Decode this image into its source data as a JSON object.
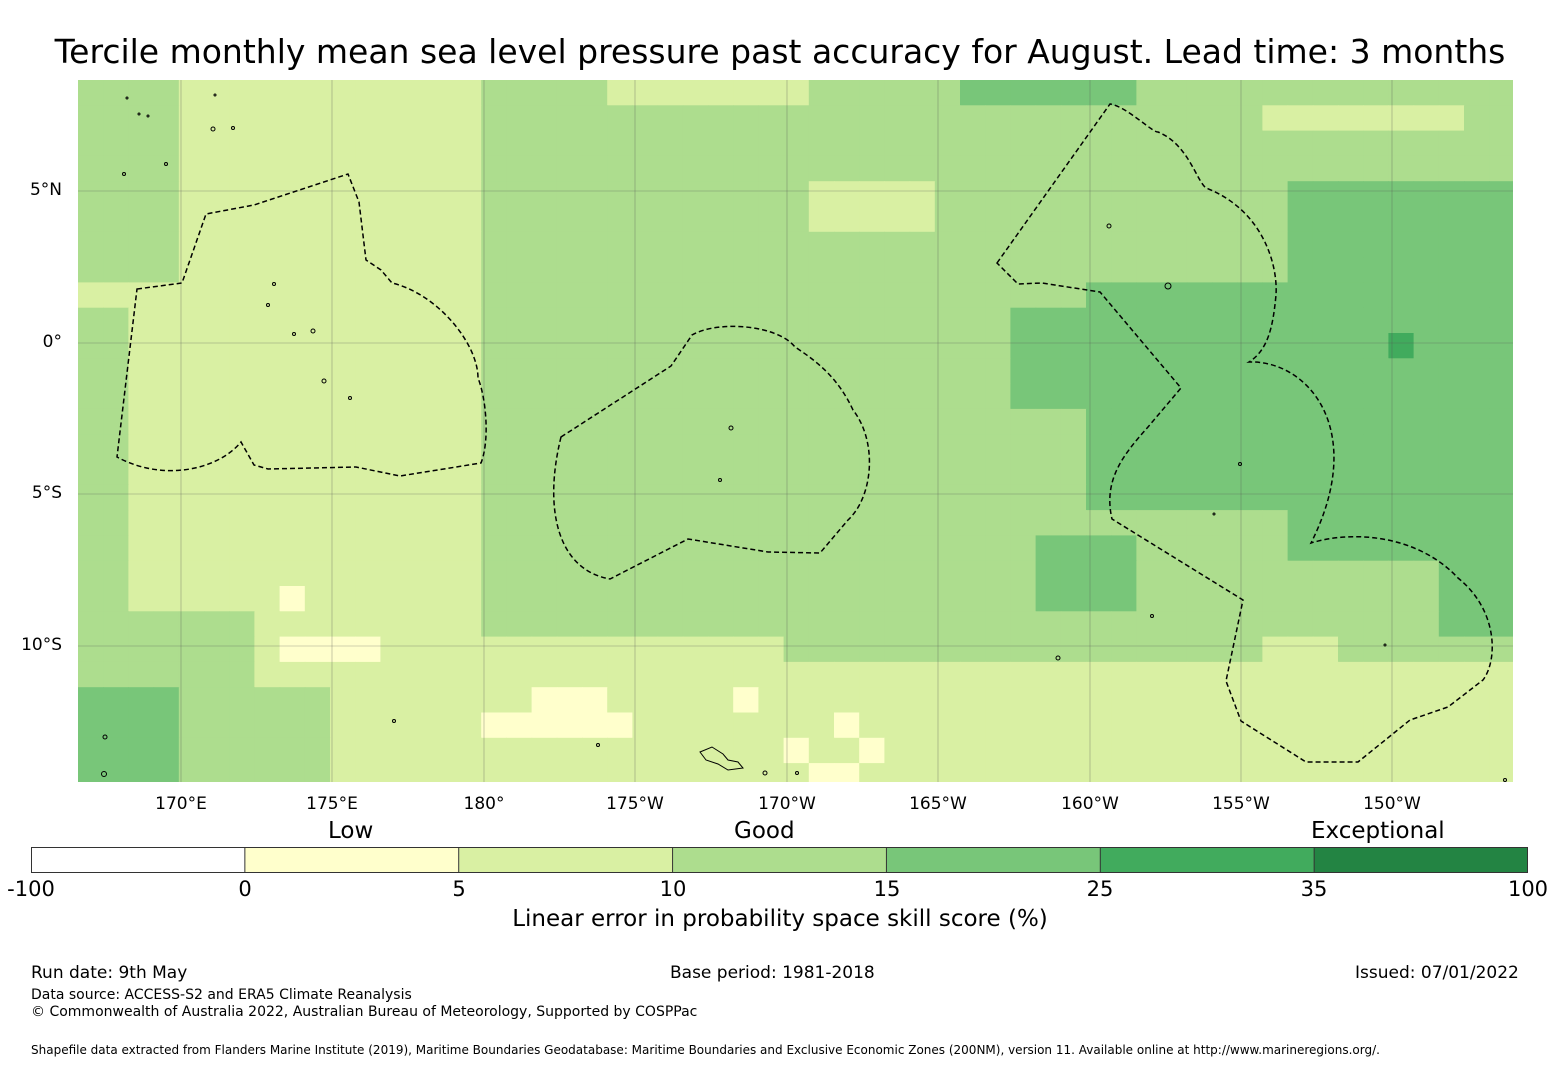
{
  "title": "Tercile monthly mean sea level pressure past accuracy for August. Lead time: 3 months",
  "map": {
    "lat_labels": [
      "5°N",
      "0°",
      "5°S",
      "10°S"
    ],
    "lon_labels": [
      "170°E",
      "175°E",
      "180°",
      "175°W",
      "170°W",
      "165°W",
      "160°W",
      "155°W",
      "150°W"
    ],
    "colors": {
      "neg": "#ffffff",
      "c0_5": "#ffffcc",
      "c5_10": "#d9f0a3",
      "c10_15": "#addd8e",
      "c15_25": "#78c679",
      "c25_35": "#41ab5d",
      "c35_100": "#238443",
      "grid": "#555555",
      "boundary": "#000000"
    }
  },
  "legend": {
    "categories": [
      "Low",
      "Good",
      "Exceptional"
    ],
    "ticks": [
      "-100",
      "0",
      "5",
      "10",
      "15",
      "25",
      "35",
      "100"
    ],
    "bin_colors": [
      "#ffffff",
      "#ffffcc",
      "#d9f0a3",
      "#addd8e",
      "#78c679",
      "#41ab5d",
      "#238443"
    ],
    "label": "Linear error in probability space skill score (%)"
  },
  "footer": {
    "run_date": "Run date: 9th May",
    "base_period": "Base period: 1981-2018",
    "issued": "Issued: 07/01/2022",
    "data_source": "Data source: ACCESS-S2 and ERA5 Climate Reanalysis",
    "copyright": "© Commonwealth of Australia 2022, Australian Bureau of Meteorology, Supported by COSPPac",
    "shapefile": "Shapefile data extracted from Flanders Marine Institute (2019), Maritime Boundaries Geodatabase: Maritime Boundaries and Exclusive Economic Zones (200NM), version 11. Available online at http://www.marineregions.org/."
  }
}
